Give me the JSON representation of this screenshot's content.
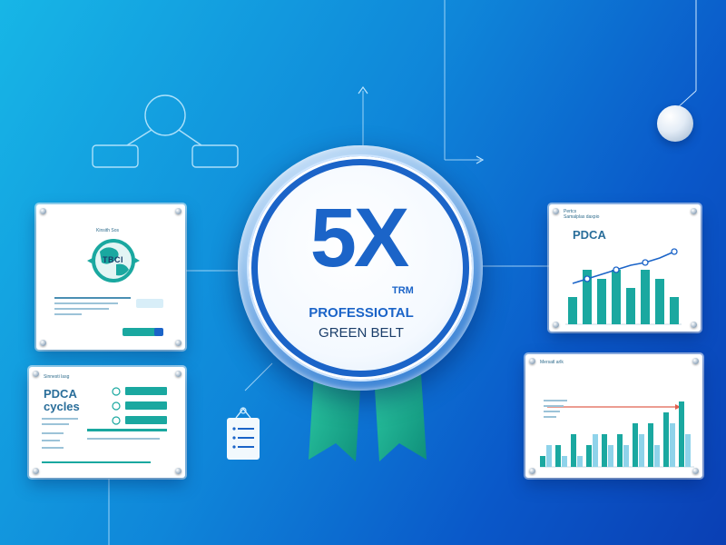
{
  "badge": {
    "headline": "5X",
    "mark": "TRM",
    "line1": "PROFESSIOTAL",
    "line2": "GREEN BELT"
  },
  "cards": {
    "top_left": {
      "caption": "Kinsith Sos",
      "globe_label": "TBCI"
    },
    "bottom_left": {
      "caption": "Sinnesti lasg",
      "title_line1": "PDCA",
      "title_line2": "cycles"
    },
    "top_right": {
      "caption_line1": "Pertcs",
      "caption_line2": "Samalplas daxpio",
      "title": "PDCA"
    },
    "bottom_right": {
      "caption": "Mersatl arlk"
    }
  },
  "colors": {
    "accent_teal": "#1aa8a0",
    "accent_blue": "#1b64c8",
    "ribbon_green": "#19b08f",
    "trend_line": "#e0604f",
    "bar_light": "#8fd3ea"
  },
  "icons": {
    "org": "org-chart-icon",
    "clipboard": "clipboard-icon",
    "globe": "globe-icon",
    "pin": "pushpin-icon",
    "pendulum": "sphere-icon"
  },
  "chart_data": [
    {
      "type": "bar",
      "title": "PDCA",
      "note": "bars with overlaid rising line, no axis labels printed",
      "values": [
        3,
        6,
        5,
        6,
        4,
        6,
        5,
        3
      ],
      "line": [
        2.5,
        3.0,
        3.5,
        4.0,
        4.5,
        4.8,
        5.3,
        6.0
      ]
    },
    {
      "type": "bar",
      "title": "",
      "note": "two-series grouped bars with a horizontal reference line",
      "series": [
        {
          "values": [
            1,
            2,
            3,
            2,
            3,
            3,
            4,
            4,
            5,
            6
          ]
        },
        {
          "values": [
            2,
            1,
            1,
            3,
            2,
            2,
            3,
            2,
            4,
            3
          ]
        }
      ],
      "reference": 5.5
    }
  ]
}
